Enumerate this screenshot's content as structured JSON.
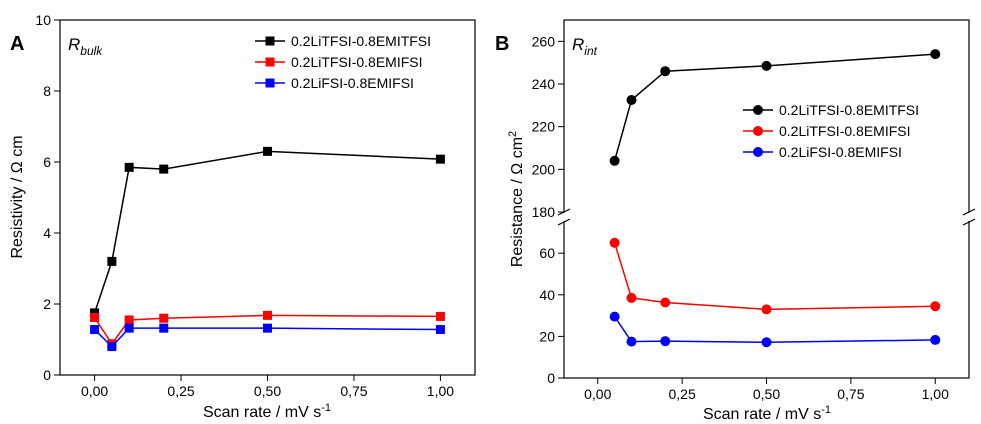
{
  "chart_data": [
    {
      "type": "line",
      "panel_label": "A",
      "quantity_label": {
        "main": "R",
        "sub": "bulk"
      },
      "xlabel": "Scan rate / mV s",
      "xlabel_sup": "-1",
      "ylabel": "Resistivity / Ω cm",
      "xlim": [
        -0.1,
        1.1
      ],
      "ylim": [
        0,
        10
      ],
      "x_ticks": [
        0.0,
        0.25,
        0.5,
        0.75,
        1.0
      ],
      "x_tick_labels": [
        "0,00",
        "0,25",
        "0,50",
        "0,75",
        "1,00"
      ],
      "y_ticks": [
        0,
        2,
        4,
        6,
        8,
        10
      ],
      "y_tick_labels": [
        "0",
        "2",
        "4",
        "6",
        "8",
        "10"
      ],
      "marker": "square",
      "grid": false,
      "legend_position": "top-right",
      "series": [
        {
          "name": "0.2LiTFSI-0.8EMITFSI",
          "color": "#000000",
          "x": [
            0.0,
            0.05,
            0.1,
            0.2,
            0.5,
            1.0
          ],
          "y": [
            1.75,
            3.2,
            5.85,
            5.8,
            6.3,
            6.08
          ]
        },
        {
          "name": "0.2LiTFSI-0.8EMIFSI",
          "color": "#ff0000",
          "x": [
            0.0,
            0.05,
            0.1,
            0.2,
            0.5,
            1.0
          ],
          "y": [
            1.62,
            0.88,
            1.55,
            1.6,
            1.68,
            1.65
          ]
        },
        {
          "name": "0.2LiFSI-0.8EMIFSI",
          "color": "#0000ff",
          "x": [
            0.0,
            0.05,
            0.1,
            0.2,
            0.5,
            1.0
          ],
          "y": [
            1.28,
            0.8,
            1.32,
            1.32,
            1.32,
            1.28
          ]
        }
      ]
    },
    {
      "type": "line",
      "panel_label": "B",
      "quantity_label": {
        "main": "R",
        "sub": "int"
      },
      "xlabel": "Scan rate / mV s",
      "xlabel_sup": "-1",
      "ylabel": "Resistance / Ω cm",
      "ylabel_sup": "2",
      "xlim": [
        -0.1,
        1.1
      ],
      "y_axis_break": true,
      "ylim_lower": [
        0,
        75
      ],
      "ylim_upper": [
        180,
        270
      ],
      "x_ticks": [
        0.0,
        0.25,
        0.5,
        0.75,
        1.0
      ],
      "x_tick_labels": [
        "0,00",
        "0,25",
        "0,50",
        "0,75",
        "1,00"
      ],
      "y_ticks_lower": [
        0,
        20,
        40,
        60
      ],
      "y_tick_labels_lower": [
        "0",
        "20",
        "40",
        "60"
      ],
      "y_ticks_upper": [
        180,
        200,
        220,
        240,
        260
      ],
      "y_tick_labels_upper": [
        "180",
        "200",
        "220",
        "240",
        "260"
      ],
      "marker": "circle",
      "grid": false,
      "legend_position": "right",
      "series": [
        {
          "name": "0.2LiTFSI-0.8EMITFSI",
          "color": "#000000",
          "x": [
            0.05,
            0.1,
            0.2,
            0.5,
            1.0
          ],
          "y": [
            204,
            232.5,
            246,
            248.5,
            254
          ]
        },
        {
          "name": "0.2LiTFSI-0.8EMIFSI",
          "color": "#ff0000",
          "x": [
            0.05,
            0.1,
            0.2,
            0.5,
            1.0
          ],
          "y": [
            65,
            38.5,
            36.3,
            33,
            34.5
          ]
        },
        {
          "name": "0.2LiFSI-0.8EMIFSI",
          "color": "#0000ff",
          "x": [
            0.05,
            0.1,
            0.2,
            0.5,
            1.0
          ],
          "y": [
            29.5,
            17.5,
            17.7,
            17.2,
            18.3
          ]
        }
      ]
    }
  ]
}
